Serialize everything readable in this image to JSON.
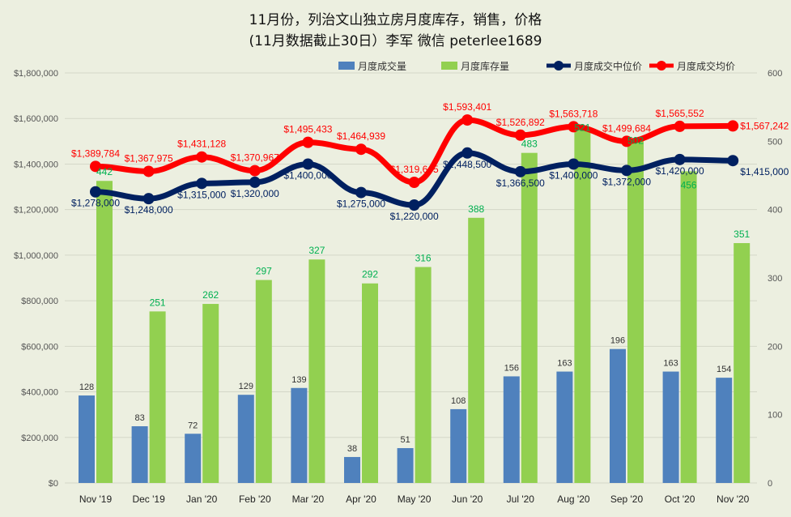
{
  "chart_data": {
    "type": "bar+line",
    "title": "11月份，列治文山独立房月度库存，销售，价格",
    "subtitle": "(11月数据截止30日）李军 微信 peterlee1689",
    "categories": [
      "Nov '19",
      "Dec '19",
      "Jan '20",
      "Feb '20",
      "Mar '20",
      "Apr '20",
      "May '20",
      "Jun '20",
      "Jul '20",
      "Aug '20",
      "Sep '20",
      "Oct '20",
      "Nov '20"
    ],
    "series": [
      {
        "name": "月度成交量",
        "type": "bar",
        "axis": "right",
        "color": "#4f81bd",
        "values": [
          128,
          83,
          72,
          129,
          139,
          38,
          51,
          108,
          156,
          163,
          196,
          163,
          154
        ]
      },
      {
        "name": "月度库存量",
        "type": "bar",
        "axis": "right",
        "color": "#92d050",
        "label_color": "#00b050",
        "values": [
          442,
          251,
          262,
          297,
          327,
          292,
          316,
          388,
          483,
          521,
          502,
          456,
          351
        ]
      },
      {
        "name": "月度成交中位价",
        "type": "line",
        "axis": "left",
        "color": "#002060",
        "values": [
          1278000,
          1248000,
          1315000,
          1320000,
          1400000,
          1275000,
          1220000,
          1448500,
          1366500,
          1400000,
          1372000,
          1420000,
          1415000
        ]
      },
      {
        "name": "月度成交均价",
        "type": "line",
        "axis": "left",
        "color": "#ff0000",
        "values": [
          1389784,
          1367975,
          1431128,
          1370967,
          1495433,
          1464939,
          1319645,
          1593401,
          1526892,
          1563718,
          1499684,
          1565552,
          1567242
        ]
      }
    ],
    "left_axis": {
      "range": [
        0,
        1800000
      ],
      "ticks": [
        "$0",
        "$200,000",
        "$400,000",
        "$600,000",
        "$800,000",
        "$1,000,000",
        "$1,200,000",
        "$1,400,000",
        "$1,600,000",
        "$1,800,000"
      ]
    },
    "right_axis": {
      "range": [
        0,
        600
      ],
      "ticks": [
        "0",
        "100",
        "200",
        "300",
        "400",
        "500",
        "600"
      ]
    },
    "legend_position": "top",
    "grid": true
  }
}
